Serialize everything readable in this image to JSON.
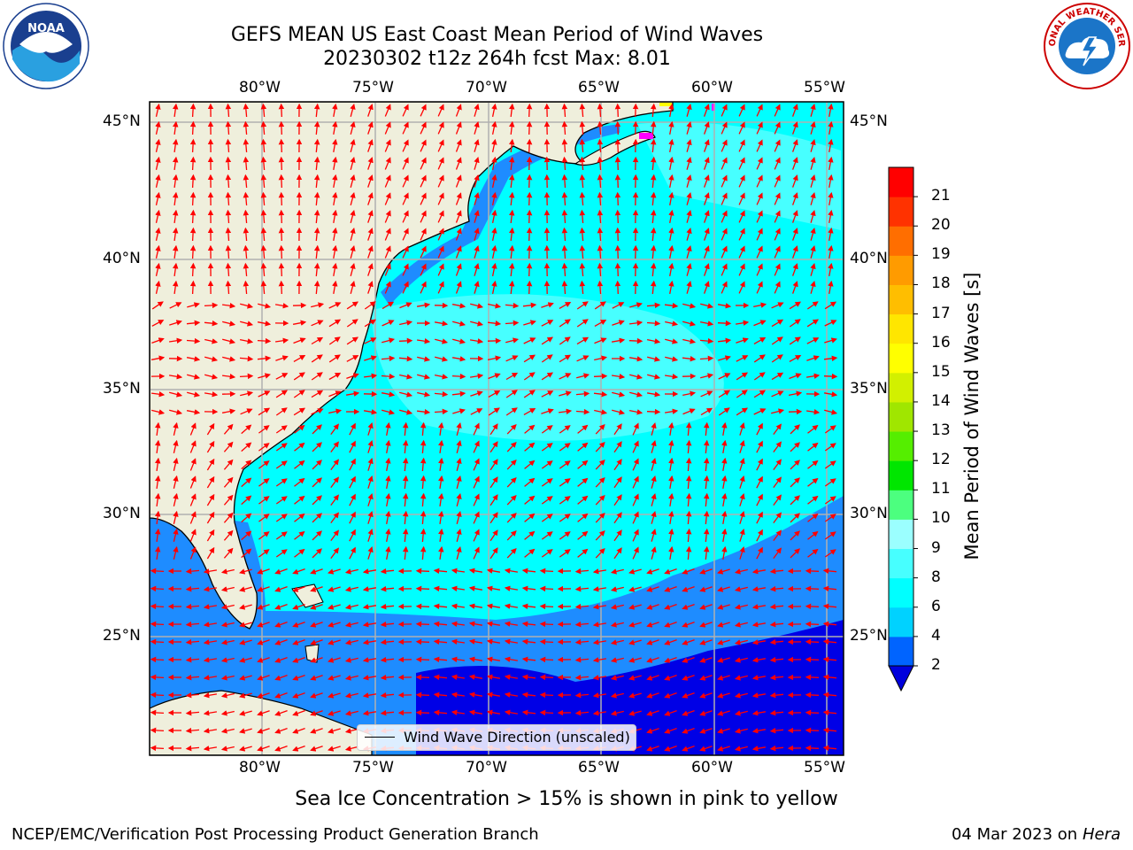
{
  "title": {
    "line1": "GEFS MEAN US East Coast Mean Period of Wind Waves",
    "line2": "20230302 t12z 264h fcst   Max: 8.01"
  },
  "logos": {
    "left": "noaa-logo",
    "right": "nws-logo",
    "left_text": "NOAA",
    "right_text": "NATIONAL WEATHER SERVICE"
  },
  "map": {
    "lon_labels": [
      "80°W",
      "75°W",
      "70°W",
      "65°W",
      "60°W",
      "55°W"
    ],
    "lat_labels": [
      "45°N",
      "40°N",
      "35°N",
      "30°N",
      "25°N"
    ],
    "legend_label": "Wind Wave Direction (unscaled)",
    "colors": {
      "land": "#efefdc",
      "ocean_2_4": "#1e8cff",
      "ocean_4_6": "#00ffff",
      "ocean_low": "#0000e6",
      "arrow": "#ff0000",
      "ice": "#ff00ff",
      "grid": "#b0b0b0"
    }
  },
  "colorbar": {
    "title": "Mean Period of Wind Waves [s]",
    "ticks": [
      "2",
      "4",
      "6",
      "8",
      "9",
      "10",
      "11",
      "12",
      "13",
      "14",
      "15",
      "16",
      "17",
      "18",
      "19",
      "20",
      "21"
    ],
    "colors": [
      "#0064ff",
      "#00d2ff",
      "#00ffff",
      "#47ffff",
      "#9bffff",
      "#4cff7f",
      "#00e600",
      "#55ee00",
      "#a0e600",
      "#d2f000",
      "#ffff00",
      "#ffe600",
      "#ffbe00",
      "#ff9b00",
      "#ff6e00",
      "#ff3200",
      "#ff0000"
    ],
    "extend_color": "#0000dc"
  },
  "footer": {
    "sea_ice": "Sea Ice Concentration > 15% is shown in pink to yellow",
    "org": "NCEP/EMC/Verification Post Processing Product Generation Branch",
    "date": "04 Mar 2023 on",
    "machine": "Hera"
  }
}
